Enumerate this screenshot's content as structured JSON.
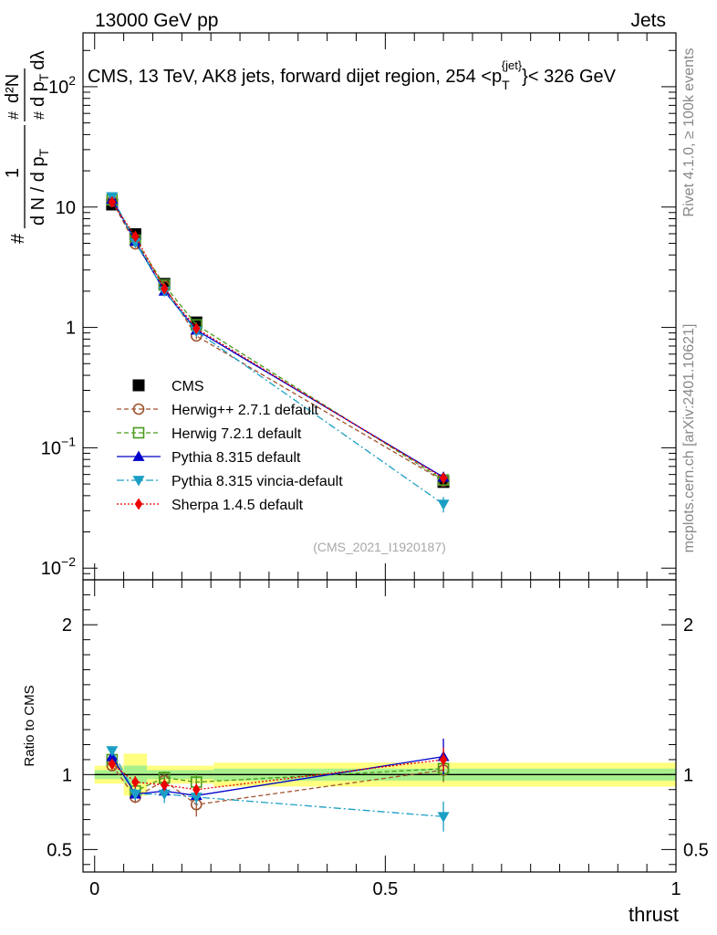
{
  "header": {
    "energy_label": "13000 GeV pp",
    "category_label": "Jets",
    "rivet_label": "Rivet 4.1.0, ≥ 100k events",
    "mcplots_label": "mcplots.cern.ch [arXiv:2401.10621]"
  },
  "chart_data": [
    {
      "type": "scatter",
      "panel": "main",
      "title": {
        "prefix": "CMS, 13 TeV, AK8 jets, forward dijet region, 254 <p",
        "sub": "T",
        "sup": "{jet}",
        "suffix": "}< 326 GeV"
      },
      "ylabel": {
        "hash": "#",
        "one": "1",
        "dn": "d N / d p",
        "dn_sub": "T",
        "num_hash": "#",
        "d2n": "d²N",
        "dp": "d p",
        "dp_sub": "T",
        "dlambda": "dλ"
      },
      "y_scale": "log",
      "ylim": [
        0.008,
        280
      ],
      "yticks": [
        {
          "value": 0.01,
          "base": "10",
          "exp": "−2"
        },
        {
          "value": 0.1,
          "base": "10",
          "exp": "−1"
        },
        {
          "value": 1,
          "base": "1",
          "exp": ""
        },
        {
          "value": 10,
          "base": "10",
          "exp": ""
        },
        {
          "value": 100,
          "base": "10",
          "exp": "2"
        }
      ],
      "xlim": [
        -0.02,
        1.0
      ],
      "watermark": "(CMS_2021_I1920187)",
      "legend_position": "middle-left",
      "series": [
        {
          "name": "CMS",
          "color": "#000000",
          "marker": "square",
          "line": "none",
          "x": [
            0.03,
            0.07,
            0.12,
            0.175,
            0.6
          ],
          "y": [
            10.5,
            5.95,
            2.3,
            1.1,
            0.052
          ],
          "err": [
            0.3,
            0.25,
            0.12,
            0.06,
            0.004
          ]
        },
        {
          "name": "Herwig++ 2.7.1 default",
          "color": "#a0522d",
          "marker": "open-circle",
          "line": "dashed",
          "x": [
            0.03,
            0.07,
            0.12,
            0.175,
            0.6
          ],
          "y": [
            11.2,
            4.95,
            2.2,
            0.85,
            0.053
          ],
          "err": [
            0.3,
            0.2,
            0.1,
            0.05,
            0.004
          ]
        },
        {
          "name": "Herwig 7.2.1 default",
          "color": "#4a9a1e",
          "marker": "open-square",
          "line": "dashed",
          "x": [
            0.03,
            0.07,
            0.12,
            0.175,
            0.6
          ],
          "y": [
            11.5,
            5.3,
            2.25,
            1.05,
            0.054
          ],
          "err": [
            0.3,
            0.2,
            0.1,
            0.05,
            0.004
          ]
        },
        {
          "name": "Pythia 8.315 default",
          "color": "#0000cc",
          "marker": "triangle-up",
          "line": "solid",
          "x": [
            0.03,
            0.07,
            0.12,
            0.175,
            0.6
          ],
          "y": [
            11.6,
            5.2,
            2.0,
            0.95,
            0.057
          ],
          "err": [
            0.3,
            0.2,
            0.1,
            0.05,
            0.005
          ]
        },
        {
          "name": "Pythia 8.315 vincia-default",
          "color": "#1c9fc4",
          "marker": "triangle-down",
          "line": "dashdot",
          "x": [
            0.03,
            0.07,
            0.12,
            0.175,
            0.6
          ],
          "y": [
            12.2,
            5.1,
            2.0,
            0.93,
            0.034
          ],
          "err": [
            0.3,
            0.2,
            0.1,
            0.05,
            0.005
          ]
        },
        {
          "name": "Sherpa 1.4.5 default",
          "color": "#ee0000",
          "marker": "diamond",
          "line": "dotted",
          "x": [
            0.03,
            0.07,
            0.12,
            0.175,
            0.6
          ],
          "y": [
            11.0,
            5.7,
            2.1,
            0.98,
            0.056
          ],
          "err": [
            0.3,
            0.2,
            0.1,
            0.05,
            0.004
          ]
        }
      ]
    },
    {
      "type": "scatter",
      "panel": "ratio",
      "ylabel": "Ratio to CMS",
      "xlabel": "thrust",
      "y_scale": "linear",
      "ylim": [
        0.35,
        2.3
      ],
      "yticks": [
        0.5,
        1,
        2
      ],
      "ytick_labels": [
        "0.5",
        "1",
        "2"
      ],
      "xlim": [
        -0.02,
        1.0
      ],
      "xticks": [
        0,
        0.5,
        1
      ],
      "xtick_labels": [
        "0",
        "0.5",
        "1"
      ],
      "uncertainty_bands": [
        {
          "x_from": 0.0,
          "x_to": 0.05,
          "stat_half_width": 0.03,
          "total_half_width": 0.06
        },
        {
          "x_from": 0.05,
          "x_to": 0.09,
          "stat_half_width": 0.06,
          "total_half_width": 0.14
        },
        {
          "x_from": 0.09,
          "x_to": 0.205,
          "stat_half_width": 0.03,
          "total_half_width": 0.06
        },
        {
          "x_from": 0.205,
          "x_to": 1.0,
          "stat_half_width": 0.04,
          "total_half_width": 0.08
        }
      ],
      "series": [
        {
          "name": "Herwig++ 2.7.1 default",
          "y": [
            1.06,
            0.85,
            0.96,
            0.8,
            1.03
          ],
          "err": [
            0.03,
            0.04,
            0.04,
            0.08,
            0.08
          ]
        },
        {
          "name": "Herwig 7.2.1 default",
          "y": [
            1.1,
            0.89,
            0.98,
            0.95,
            1.04
          ],
          "err": [
            0.03,
            0.04,
            0.04,
            0.06,
            0.08
          ]
        },
        {
          "name": "Pythia 8.315 default",
          "y": [
            1.12,
            0.87,
            0.89,
            0.86,
            1.12
          ],
          "err": [
            0.03,
            0.04,
            0.04,
            0.05,
            0.12
          ]
        },
        {
          "name": "Pythia 8.315 vincia-default",
          "y": [
            1.16,
            0.87,
            0.87,
            0.85,
            0.72
          ],
          "err": [
            0.03,
            0.04,
            0.06,
            0.05,
            0.1
          ]
        },
        {
          "name": "Sherpa 1.4.5 default",
          "y": [
            1.07,
            0.95,
            0.93,
            0.9,
            1.1
          ],
          "err": [
            0.03,
            0.04,
            0.04,
            0.04,
            0.08
          ]
        }
      ]
    }
  ]
}
